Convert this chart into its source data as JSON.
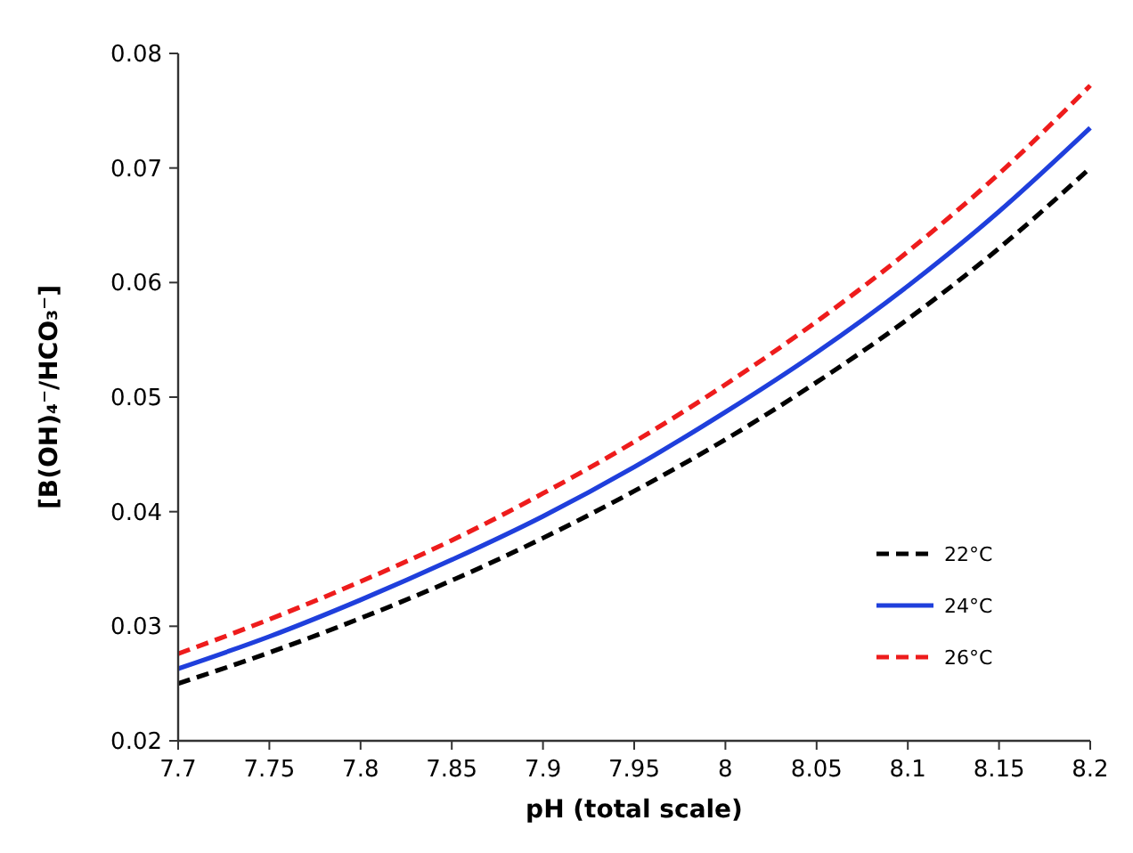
{
  "chart_data": {
    "type": "line",
    "xlabel": "pH (total scale)",
    "ylabel": "[B(OH)₄⁻/HCO₃⁻]",
    "x": [
      7.7,
      7.75,
      7.8,
      7.85,
      7.9,
      7.95,
      8,
      8.05,
      8.1,
      8.15,
      8.2
    ],
    "series": [
      {
        "name": "22°C",
        "color": "#000000",
        "line_style": "dashed",
        "values": [
          0.025,
          0.0277,
          0.0307,
          0.034,
          0.0377,
          0.0418,
          0.0463,
          0.0513,
          0.0568,
          0.063,
          0.07
        ]
      },
      {
        "name": "24°C",
        "color": "#1f3fdc",
        "line_style": "solid",
        "values": [
          0.0263,
          0.0291,
          0.0323,
          0.0358,
          0.0396,
          0.0439,
          0.0487,
          0.0539,
          0.0597,
          0.0662,
          0.0735
        ]
      },
      {
        "name": "26°C",
        "color": "#ee1c1c",
        "line_style": "dashed",
        "values": [
          0.0276,
          0.0306,
          0.0339,
          0.0375,
          0.0416,
          0.0461,
          0.0511,
          0.0566,
          0.0627,
          0.0695,
          0.0772
        ]
      }
    ],
    "xlim": [
      7.7,
      8.2
    ],
    "xticks": [
      7.7,
      7.75,
      7.8,
      7.85,
      7.9,
      7.95,
      8,
      8.05,
      8.1,
      8.15,
      8.2
    ],
    "ylim": [
      0.02,
      0.08
    ],
    "yticks": [
      0.02,
      0.03,
      0.04,
      0.05,
      0.06,
      0.07,
      0.08
    ],
    "grid": false,
    "legend": "bottom right",
    "marker": "none"
  }
}
